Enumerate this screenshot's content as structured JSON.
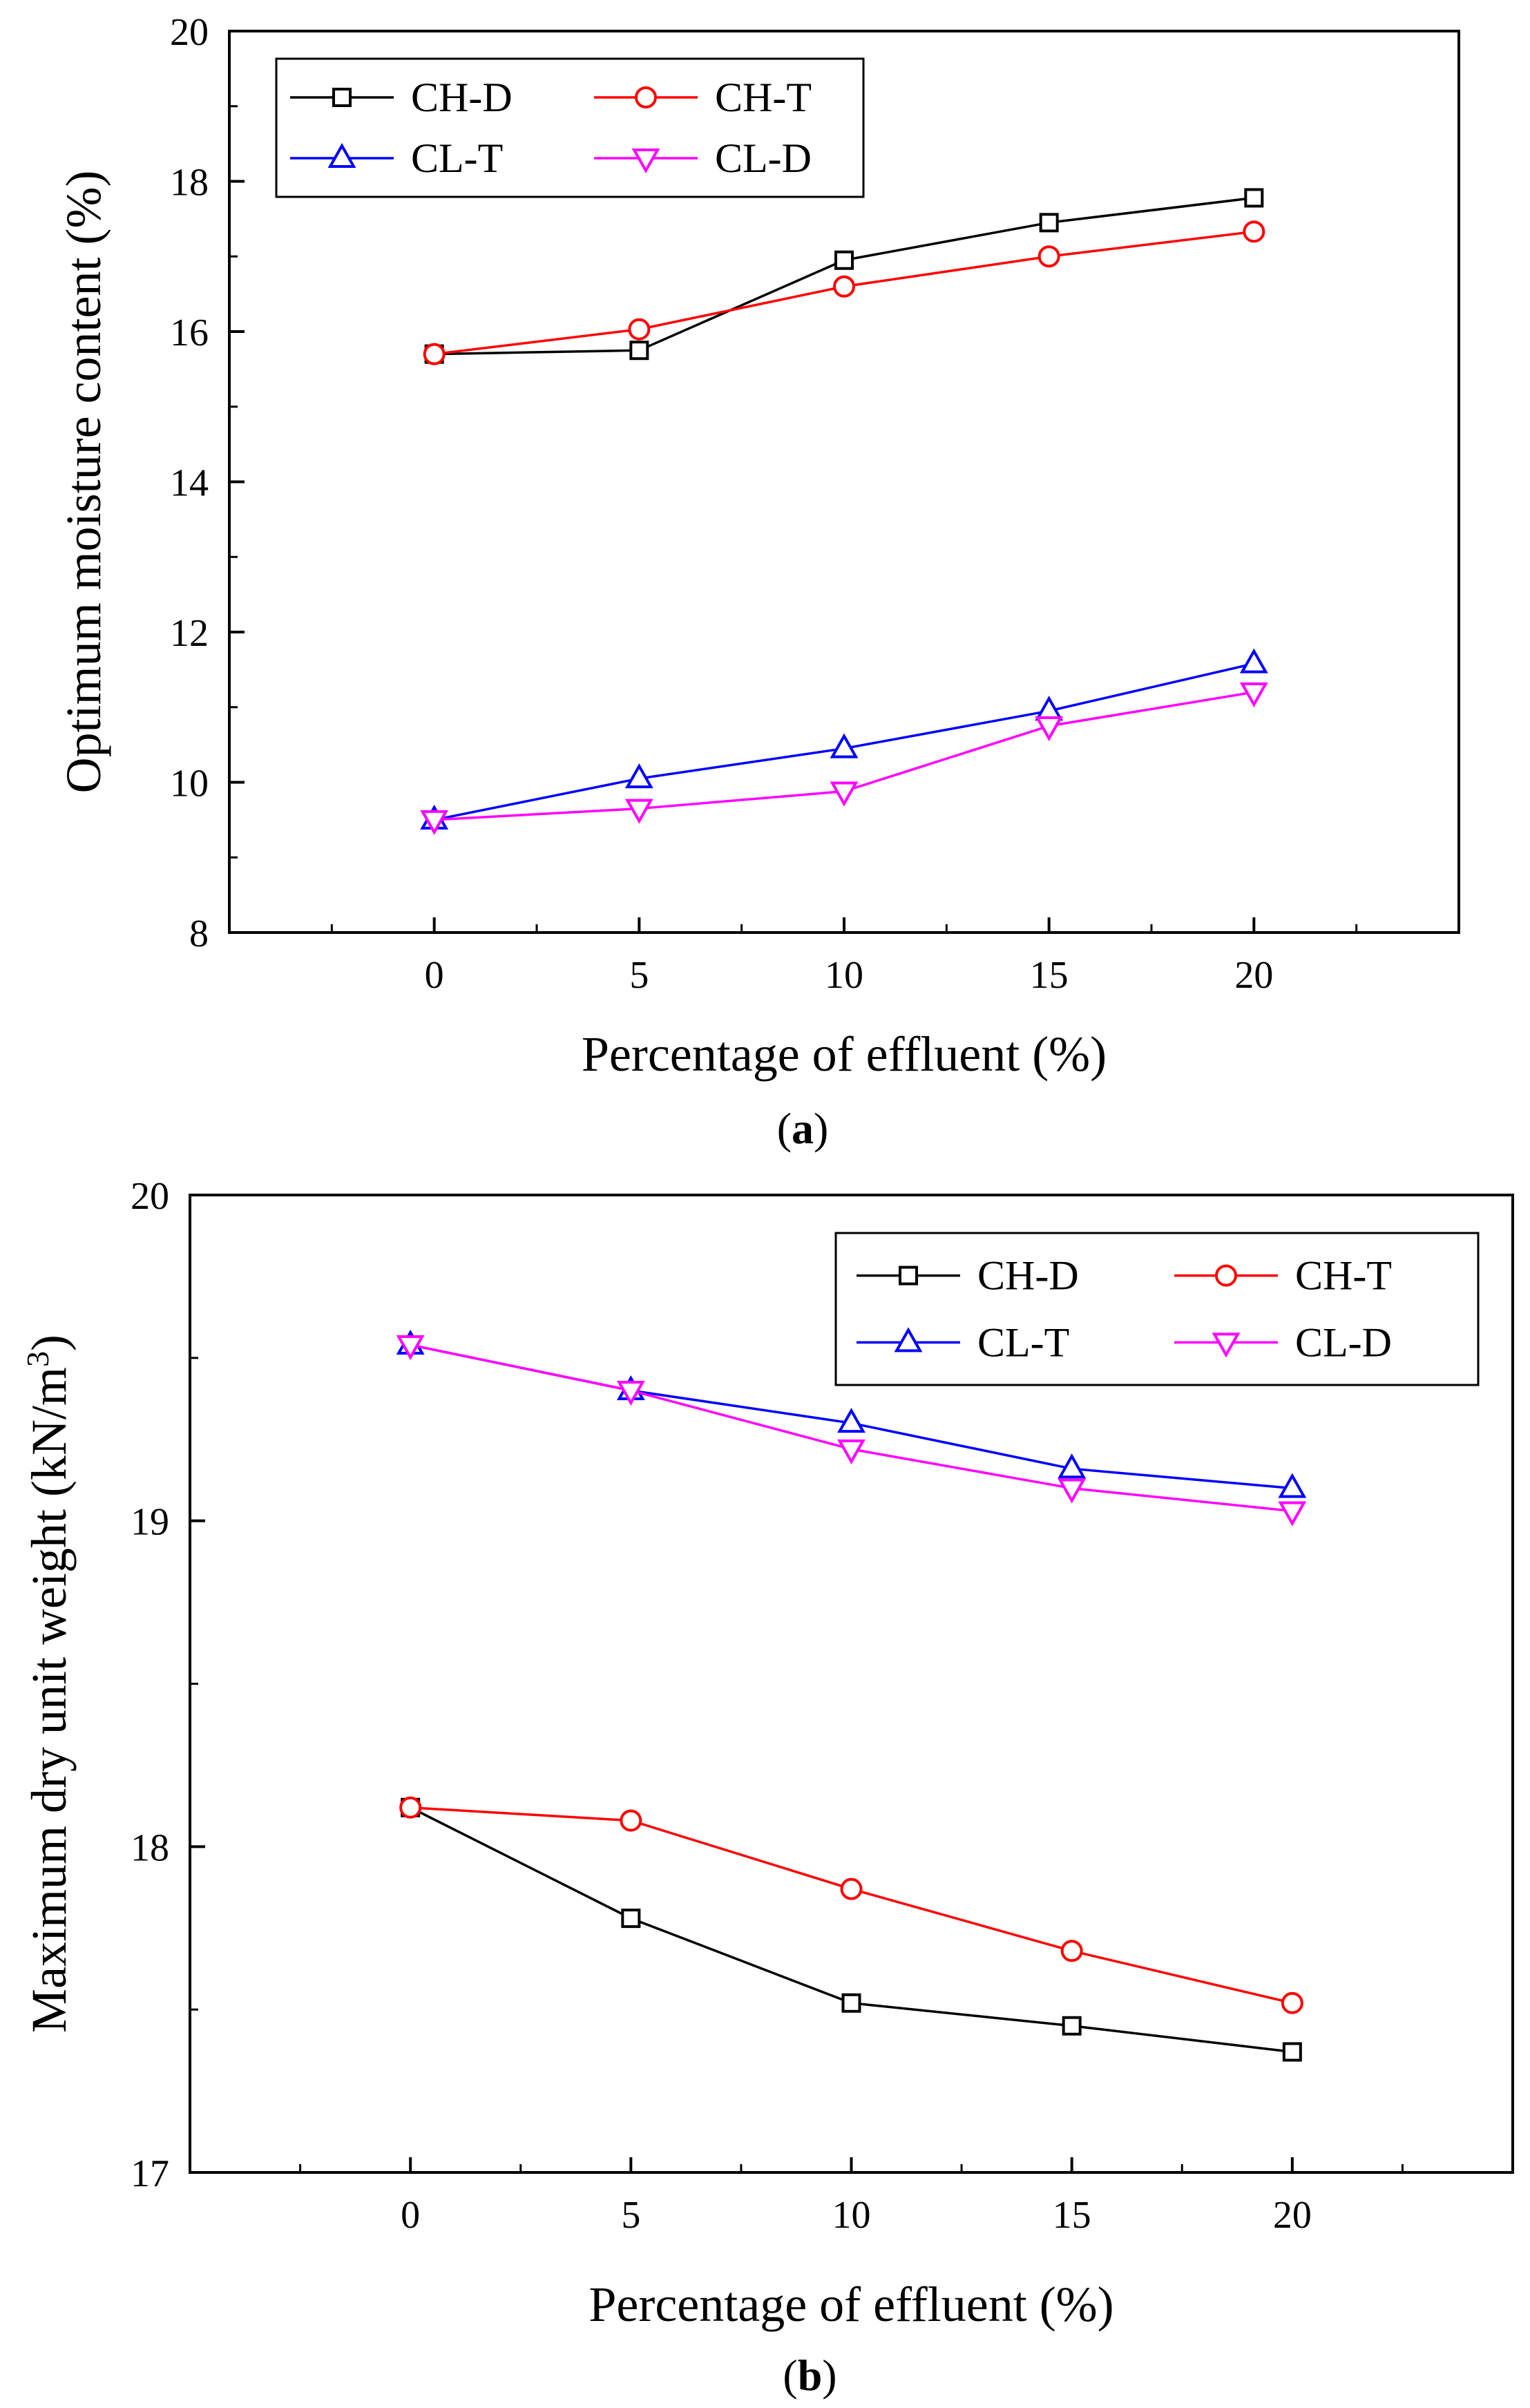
{
  "chart_data": [
    {
      "type": "line",
      "caption": "a",
      "title": "",
      "xlabel": "Percentage of effluent (%)",
      "ylabel": "Optimum moisture content (%)",
      "x": [
        0,
        5,
        10,
        15,
        20
      ],
      "x_ticks": [
        "0",
        "5",
        "10",
        "15",
        "20"
      ],
      "y_ticks": [
        "8",
        "10",
        "12",
        "14",
        "16",
        "18",
        "20"
      ],
      "xlim": [
        -5,
        25
      ],
      "ylim": [
        8,
        20
      ],
      "legend_position": "top-left",
      "series": [
        {
          "name": "CH-D",
          "marker": "square",
          "color": "#000000",
          "values": [
            15.7,
            15.75,
            16.95,
            17.45,
            17.78
          ]
        },
        {
          "name": "CH-T",
          "marker": "circle",
          "color": "#ff0000",
          "values": [
            15.7,
            16.03,
            16.6,
            17.0,
            17.33
          ]
        },
        {
          "name": "CL-T",
          "marker": "triangle-up",
          "color": "#0000ff",
          "values": [
            9.5,
            10.05,
            10.45,
            10.95,
            11.58
          ]
        },
        {
          "name": "CL-D",
          "marker": "triangle-down",
          "color": "#ff00ff",
          "values": [
            9.5,
            9.65,
            9.88,
            10.75,
            11.2
          ]
        }
      ]
    },
    {
      "type": "line",
      "caption": "b",
      "title": "",
      "xlabel": "Percentage of effluent (%)",
      "ylabel": "Maximum dry unit weight (kN/m",
      "ylabel_superscript": "3",
      "ylabel_suffix": ")",
      "x": [
        0,
        5,
        10,
        15,
        20
      ],
      "x_ticks": [
        "0",
        "5",
        "10",
        "15",
        "20"
      ],
      "y_ticks": [
        "17",
        "18",
        "19",
        "20"
      ],
      "xlim": [
        -5,
        25
      ],
      "ylim": [
        17,
        20
      ],
      "legend_position": "top-right",
      "series": [
        {
          "name": "CH-D",
          "marker": "square",
          "color": "#000000",
          "values": [
            18.12,
            17.78,
            17.52,
            17.45,
            17.37
          ]
        },
        {
          "name": "CH-T",
          "marker": "circle",
          "color": "#ff0000",
          "values": [
            18.12,
            18.08,
            17.87,
            17.68,
            17.52
          ]
        },
        {
          "name": "CL-T",
          "marker": "triangle-up",
          "color": "#0000ff",
          "values": [
            19.54,
            19.4,
            19.3,
            19.16,
            19.1
          ]
        },
        {
          "name": "CL-D",
          "marker": "triangle-down",
          "color": "#ff00ff",
          "values": [
            19.54,
            19.4,
            19.22,
            19.1,
            19.03
          ]
        }
      ]
    }
  ]
}
